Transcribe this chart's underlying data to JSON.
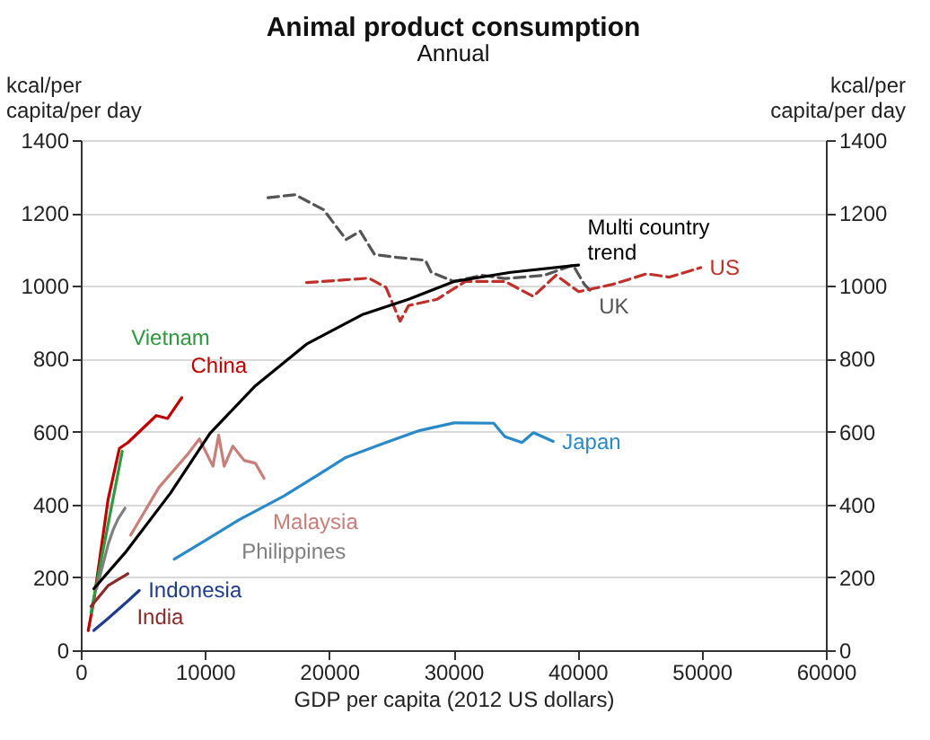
{
  "chart_data": {
    "type": "line",
    "title": "Animal product consumption",
    "subtitle": "Annual",
    "xlabel": "GDP per capita (2012 US dollars)",
    "ylabel": "kcal/per\ncapita/per day",
    "y2label": "kcal/per\ncapita/per day",
    "xlim": [
      0,
      60000
    ],
    "xticks": [
      0,
      10000,
      20000,
      30000,
      40000,
      50000,
      60000
    ],
    "ylim": [
      0,
      1400
    ],
    "yticks": [
      0,
      200,
      400,
      600,
      800,
      1000,
      1200,
      1400
    ],
    "y2lim": [
      0,
      1400
    ],
    "y2ticks": [
      0,
      200,
      400,
      600,
      800,
      1000,
      1200,
      1400
    ],
    "grid": "y",
    "legend": false,
    "marker": "none",
    "line_style": "solid",
    "series": [
      {
        "name": "China",
        "color": "#c00000",
        "x": [
          600,
          1050,
          2200,
          3110,
          3800,
          6080,
          6990,
          8130
        ],
        "values": [
          54,
          136,
          414,
          554,
          570,
          644,
          636,
          693
        ]
      },
      {
        "name": "Malaysia",
        "color": "#c87f7a",
        "x": [
          4020,
          6300,
          8590,
          9550,
          10640,
          11100,
          11550,
          12240,
          13150,
          14060,
          14750
        ],
        "values": [
          316,
          447,
          537,
          580,
          505,
          590,
          505,
          560,
          521,
          513,
          472
        ]
      },
      {
        "name": "Vietnam",
        "color": "#2e9a3e",
        "x": [
          820,
          3340
        ],
        "values": [
          103,
          546
        ]
      },
      {
        "name": "India",
        "color": "#8b2a2a",
        "x": [
          820,
          2190,
          3790
        ],
        "values": [
          120,
          177,
          210
        ]
      },
      {
        "name": "Indonesia",
        "color": "#1f3c8c",
        "x": [
          1050,
          2190,
          3560,
          4710
        ],
        "values": [
          54,
          87,
          128,
          164
        ]
      },
      {
        "name": "Philippines",
        "color": "#808080",
        "x": [
          1280,
          2200,
          2600,
          3000,
          3560
        ],
        "values": [
          169,
          290,
          330,
          360,
          390
        ]
      },
      {
        "name": "Japan",
        "color": "#2a8ac8",
        "x": [
          7530,
          9960,
          12700,
          16350,
          19100,
          21330,
          24570,
          27300,
          30050,
          33250,
          34160,
          35530,
          36450,
          38040
        ],
        "values": [
          250,
          300,
          357,
          423,
          481,
          529,
          570,
          603,
          624,
          623,
          586,
          570,
          597,
          573
        ]
      },
      {
        "name": "UK",
        "color": "#555555",
        "line_style": "dashed",
        "x": [
          15070,
          17260,
          19550,
          21370,
          22500,
          23660,
          25480,
          27750,
          28220,
          30050,
          32330,
          34160,
          37350,
          39640,
          40550,
          41000
        ],
        "values": [
          1242,
          1250,
          1209,
          1127,
          1150,
          1086,
          1078,
          1070,
          1037,
          1012,
          1029,
          1020,
          1029,
          1057,
          1004,
          988
        ]
      },
      {
        "name": "US",
        "color": "#c0302b",
        "line_style": "dashed",
        "x": [
          18180,
          23200,
          24570,
          25710,
          26400,
          28680,
          30960,
          34160,
          36440,
          38270,
          40090,
          42830,
          45570,
          47400,
          49920
        ],
        "values": [
          1009,
          1021,
          996,
          903,
          946,
          963,
          1012,
          1012,
          971,
          1029,
          984,
          1004,
          1033,
          1024,
          1050
        ]
      },
      {
        "name": "Multi country trend",
        "color": "#000000",
        "x": [
          1050,
          3560,
          7220,
          10400,
          14070,
          18180,
          22740,
          26400,
          30050,
          34620,
          40090
        ],
        "values": [
          169,
          267,
          431,
          595,
          726,
          840,
          922,
          963,
          1012,
          1037,
          1057
        ]
      }
    ]
  }
}
